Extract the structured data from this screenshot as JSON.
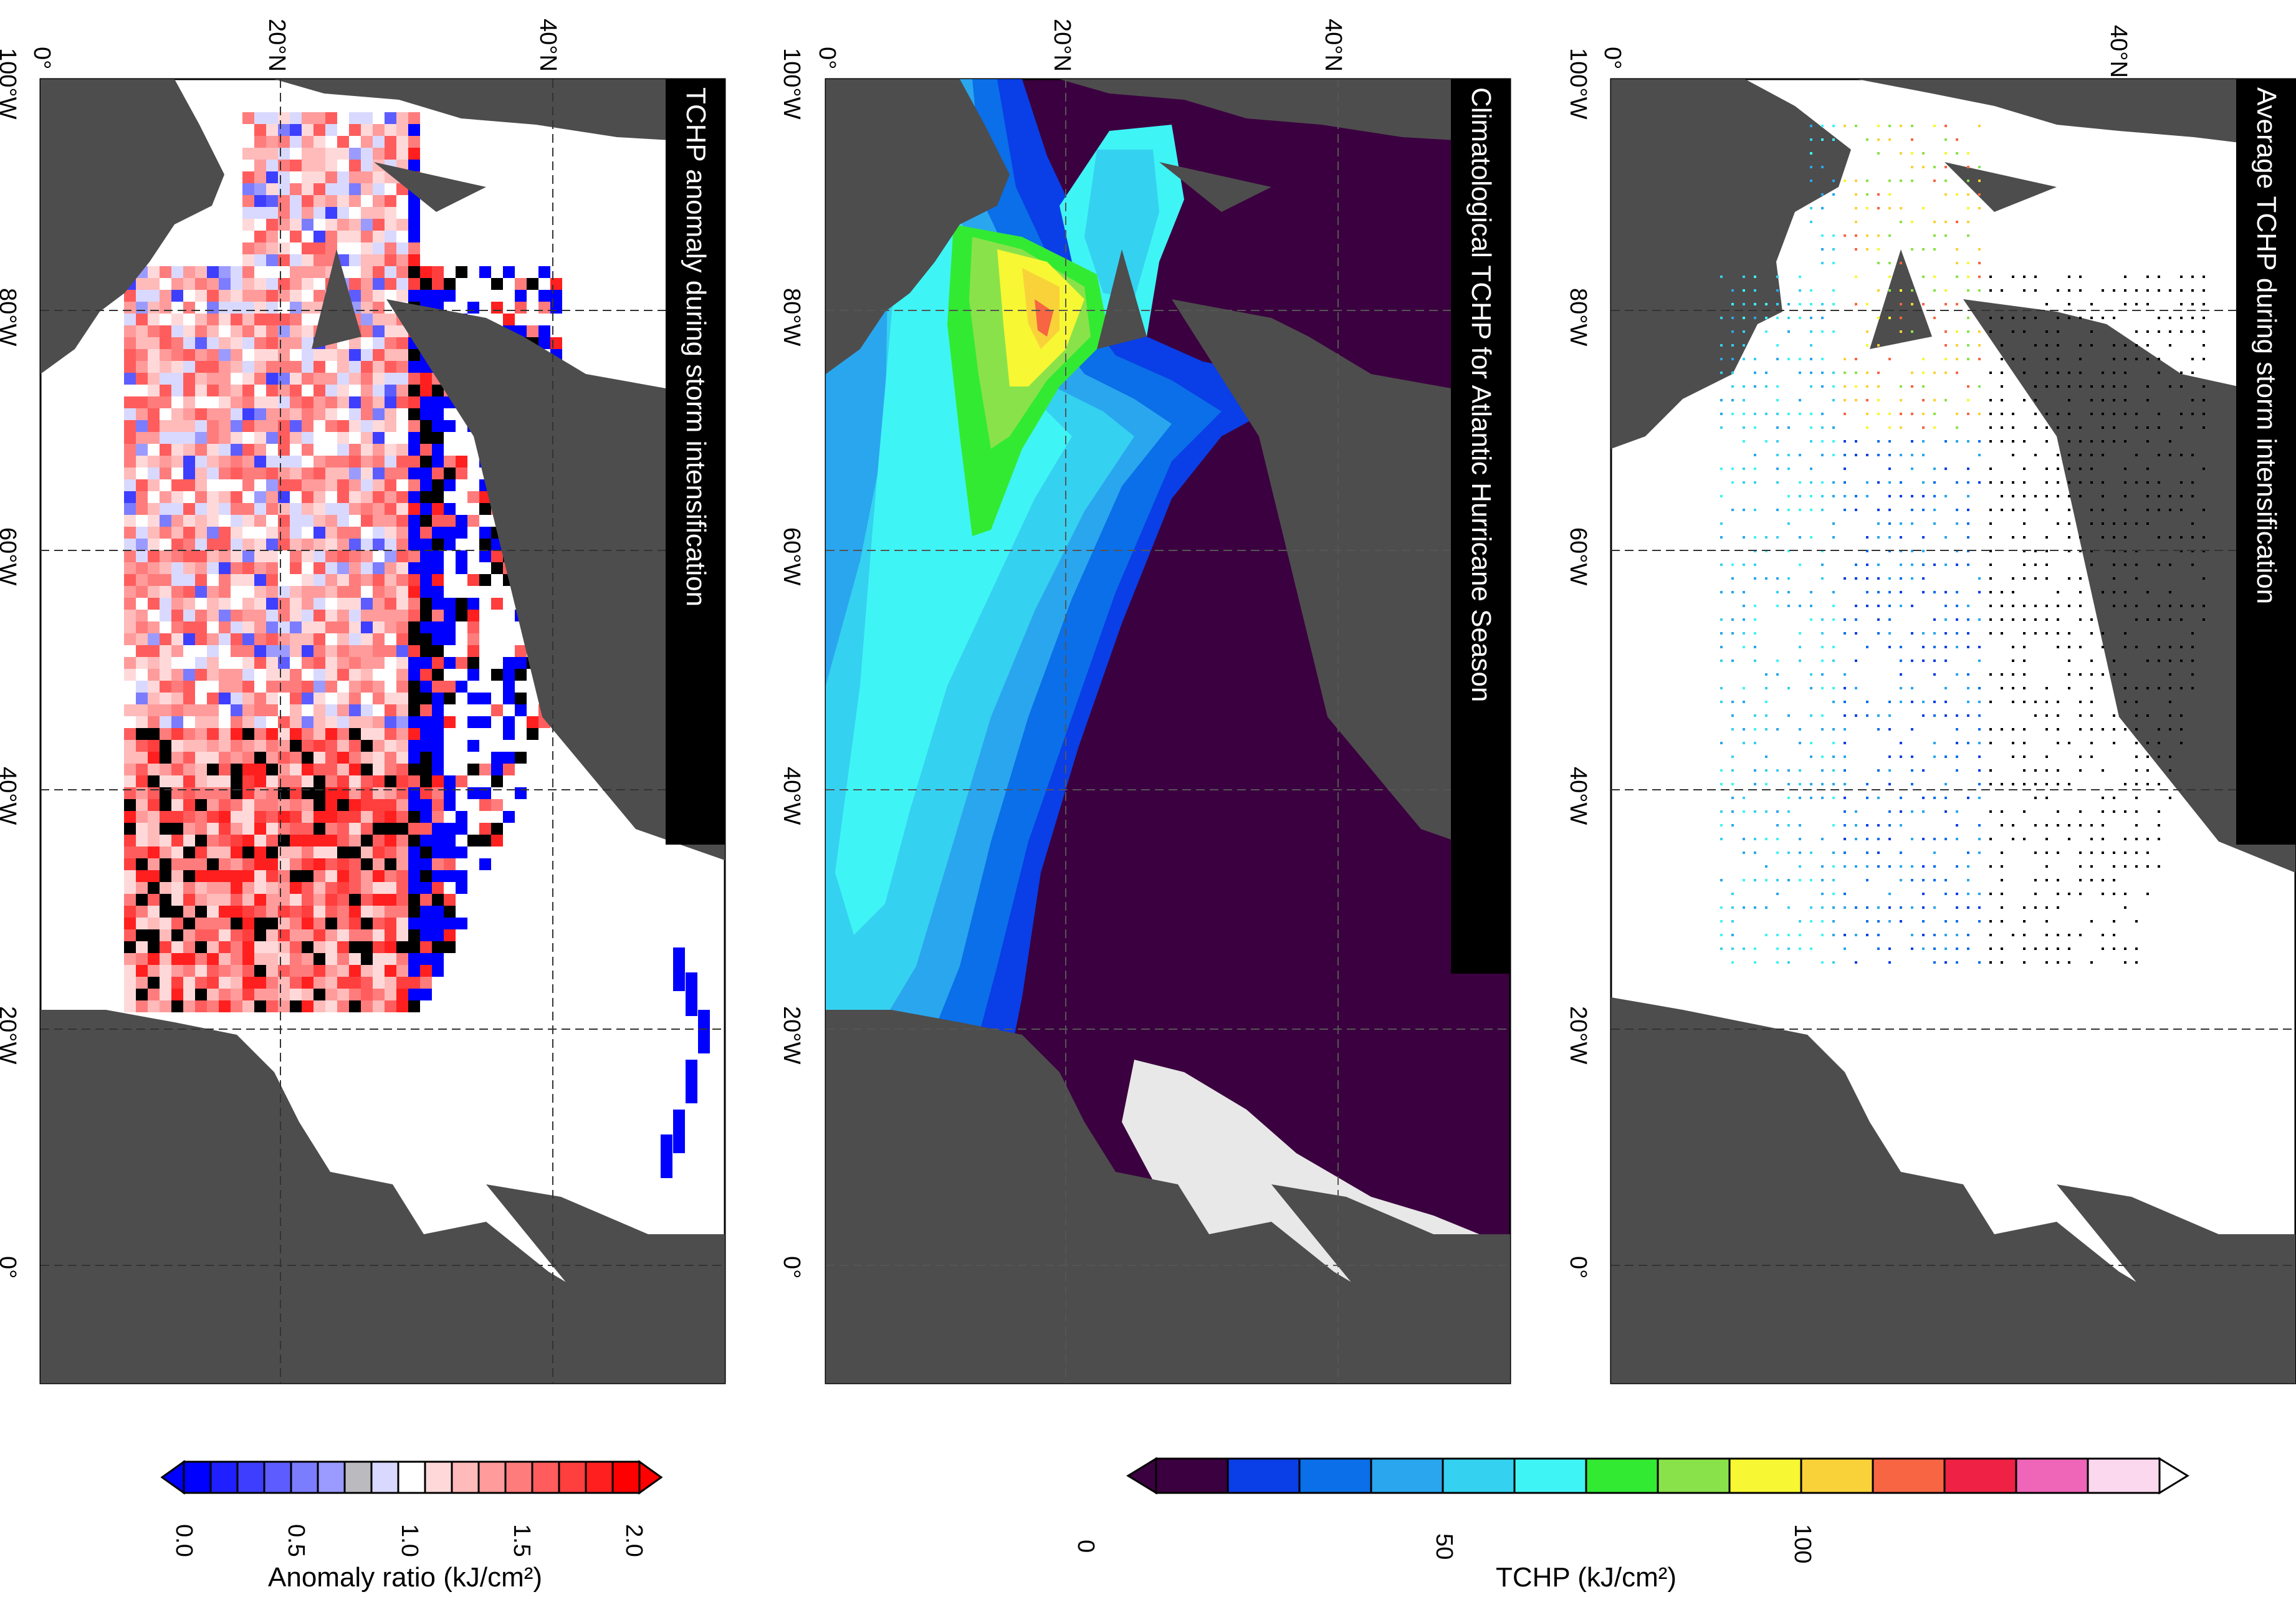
{
  "panels": [
    {
      "id": "top",
      "title": "Average TCHP during storm intensification",
      "lat_ticks": [
        "0°",
        "40°N"
      ],
      "lon_ticks": [
        "100°W",
        "80°W",
        "60°W",
        "40°W",
        "20°W",
        "0°"
      ]
    },
    {
      "id": "middle",
      "title": "Climatological TCHP for Atlantic Hurricane Season",
      "lat_ticks": [
        "0°",
        "20°N",
        "40°N"
      ],
      "lon_ticks": [
        "100°W",
        "80°W",
        "60°W",
        "40°W",
        "20°W",
        "0°"
      ]
    },
    {
      "id": "bottom",
      "title": "TCHP anomaly during storm intensification",
      "lat_ticks": [
        "0°",
        "20°N",
        "40°N"
      ],
      "lon_ticks": [
        "100°W",
        "80°W",
        "60°W",
        "40°W",
        "20°W",
        "0°"
      ]
    }
  ],
  "colorbars": {
    "tchp": {
      "label": "TCHP (kJ/cm²)",
      "ticks": [
        "0",
        "50",
        "100"
      ],
      "colors": [
        "#3b003f",
        "#0a3ee6",
        "#0a6fe8",
        "#2aa6ee",
        "#35d1f0",
        "#3ff4f5",
        "#33ea33",
        "#8ae24a",
        "#f7f733",
        "#f9d23a",
        "#f76542",
        "#ef2144",
        "#ef65b8",
        "#fcd8ef"
      ]
    },
    "anomaly": {
      "label": "Anomaly ratio (kJ/cm²)",
      "ticks": [
        "0.0",
        "0.5",
        "1.0",
        "1.5",
        "2.0"
      ],
      "colors": [
        "#0000ff",
        "#1f1fff",
        "#3e3eff",
        "#5d5dff",
        "#7c7cff",
        "#9b9bff",
        "#bababf",
        "#d9d9ff",
        "#ffffff",
        "#ffd9d9",
        "#ffbaba",
        "#ff9b9b",
        "#ff7c7c",
        "#ff5d5d",
        "#ff3e3e",
        "#ff1f1f",
        "#ff0000"
      ]
    }
  },
  "colors": {
    "land": "#4d4d4d",
    "sea": "#ffffff",
    "clim_background": "#3b003f",
    "missing": "#e8e8e8",
    "black_cell": "#000000"
  }
}
